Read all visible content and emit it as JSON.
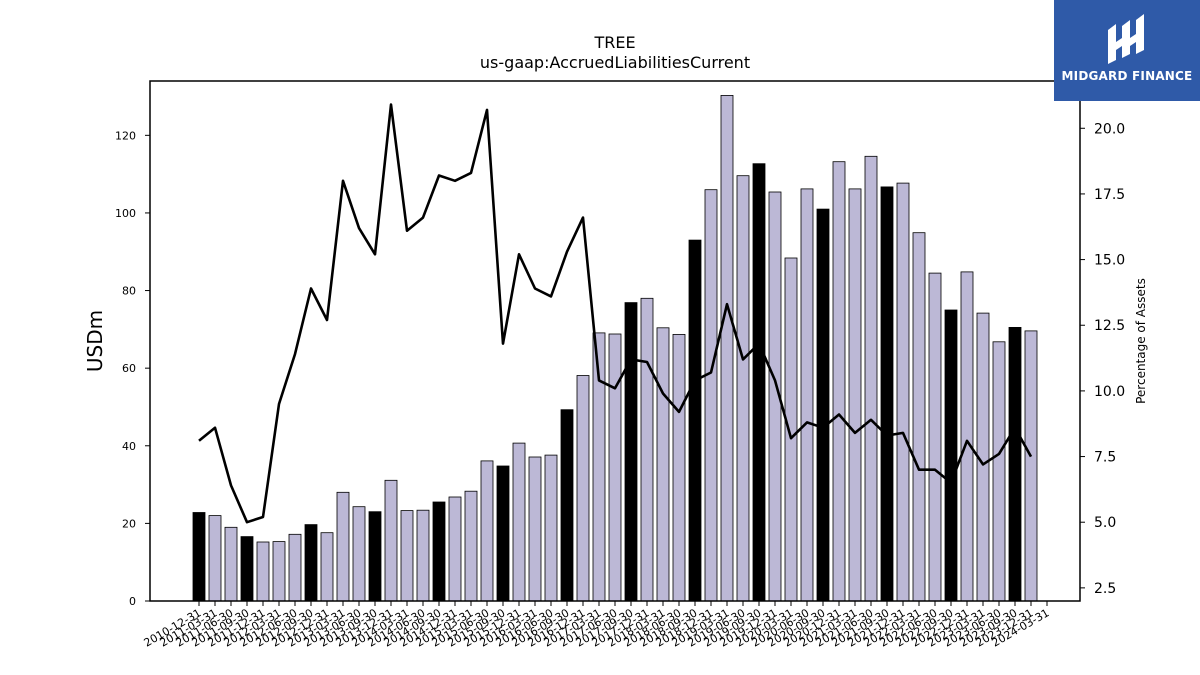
{
  "chart_data": {
    "type": "bar",
    "title": "TREE",
    "subtitle": "us-gaap:AccruedLiabilitiesCurrent",
    "ylabel": "USDm",
    "y2label": "Percentage of Assets",
    "ylim": [
      0,
      134
    ],
    "y2lim": [
      2.0,
      21.8
    ],
    "yticks": [
      0,
      20,
      40,
      60,
      80,
      100,
      120
    ],
    "y2ticks": [
      "2.5",
      "5.0",
      "7.5",
      "10.0",
      "12.5",
      "15.0",
      "17.5",
      "20.0"
    ],
    "categories": [
      "2010-12-31",
      "2011-03-31",
      "2011-06-30",
      "2011-09-30",
      "2011-12-31",
      "2012-03-31",
      "2012-06-30",
      "2012-09-30",
      "2012-12-31",
      "2013-03-31",
      "2013-06-30",
      "2013-09-30",
      "2013-12-31",
      "2014-03-31",
      "2014-06-30",
      "2014-09-30",
      "2014-12-31",
      "2015-03-31",
      "2015-06-30",
      "2015-09-30",
      "2015-12-31",
      "2016-03-31",
      "2016-06-30",
      "2016-09-30",
      "2016-12-31",
      "2017-03-31",
      "2017-06-30",
      "2017-09-30",
      "2017-12-31",
      "2018-03-31",
      "2018-06-30",
      "2018-09-30",
      "2018-12-31",
      "2019-03-31",
      "2019-06-30",
      "2019-09-30",
      "2019-12-31",
      "2020-03-31",
      "2020-06-30",
      "2020-09-30",
      "2020-12-31",
      "2021-03-31",
      "2021-06-30",
      "2021-09-30",
      "2021-12-31",
      "2022-03-31",
      "2022-06-30",
      "2022-09-30",
      "2022-12-31",
      "2023-03-31",
      "2023-06-30",
      "2023-09-30",
      "2023-12-31",
      "2024-03-31"
    ],
    "tick_labels": [
      "2010-12-31",
      "2011-03-31",
      "2011-06-30",
      "2011-09-30",
      "2011-12-31",
      "2012-03-31",
      "2012-06-30",
      "2012-09-30",
      "2012-12-31",
      "2013-03-31",
      "2013-06-30",
      "2013-09-30",
      "2013-12-31",
      "2014-03-31",
      "2014-06-30",
      "2014-09-30",
      "2014-12-31",
      "2015-03-31",
      "2015-06-30",
      "2015-09-30",
      "2015-12-31",
      "2016-03-31",
      "2016-06-30",
      "2016-09-30",
      "2016-12-31",
      "2017-03-31",
      "2017-06-30",
      "2017-09-30",
      "2017-12-31",
      "2018-03-31",
      "2018-06-30",
      "2018-09-30",
      "2018-12-31",
      "2019-03-31",
      "2019-06-30",
      "2019-09-30",
      "2019-12-31",
      "2020-03-31",
      "2020-06-30",
      "2020-09-30",
      "2020-12-31",
      "2021-03-31",
      "2021-06-30",
      "2021-09-30",
      "2021-12-31",
      "2022-03-31",
      "2022-06-30",
      "2022-09-30",
      "2022-12-31",
      "2023-03-31",
      "2023-06-30",
      "2023-09-30",
      "2023-12-31",
      "2024-03-31"
    ],
    "series": [
      {
        "kind": "bar",
        "axis": "left",
        "values": [
          22.8,
          22.0,
          19.0,
          16.6,
          15.2,
          15.3,
          17.2,
          19.7,
          17.6,
          28.0,
          24.3,
          23.0,
          31.1,
          23.3,
          23.4,
          25.5,
          26.8,
          28.3,
          36.1,
          34.8,
          40.7,
          37.1,
          37.6,
          49.3,
          58.1,
          69.1,
          68.8,
          76.9,
          78.0,
          70.4,
          68.7,
          93.0,
          106.0,
          130.3,
          109.6,
          112.7,
          105.4,
          88.4,
          106.2,
          101.0,
          113.2,
          106.2,
          114.6,
          106.7,
          107.7,
          94.9,
          84.5,
          75.0,
          84.8,
          74.2,
          66.8,
          70.5,
          69.6,
          0
        ],
        "highlight": [
          true,
          false,
          false,
          true,
          false,
          false,
          false,
          true,
          false,
          false,
          false,
          true,
          false,
          false,
          false,
          true,
          false,
          false,
          false,
          true,
          false,
          false,
          false,
          true,
          false,
          false,
          false,
          true,
          false,
          false,
          false,
          true,
          false,
          false,
          false,
          true,
          false,
          false,
          false,
          true,
          false,
          false,
          false,
          true,
          false,
          false,
          false,
          true,
          false,
          false,
          false,
          true,
          false,
          false
        ]
      },
      {
        "kind": "line",
        "axis": "right",
        "values": [
          8.1,
          8.6,
          6.4,
          5.0,
          5.2,
          9.5,
          11.4,
          13.9,
          12.7,
          18.0,
          16.2,
          15.2,
          20.9,
          16.1,
          16.6,
          18.2,
          18.0,
          18.3,
          20.7,
          11.8,
          15.2,
          13.9,
          13.6,
          15.3,
          16.6,
          10.4,
          10.1,
          11.2,
          11.1,
          9.9,
          9.2,
          10.4,
          10.7,
          13.3,
          11.2,
          11.8,
          10.4,
          8.2,
          8.8,
          8.6,
          9.1,
          8.4,
          8.9,
          8.3,
          8.4,
          7.0,
          7.0,
          6.5,
          8.1,
          7.2,
          7.6,
          8.6,
          7.5,
          null
        ]
      }
    ],
    "colors": {
      "bar_highlight": "#000000",
      "bar_normal": "#bcb8d6",
      "line": "#000000"
    }
  },
  "logo": {
    "text": "MIDGARD FINANCE"
  }
}
